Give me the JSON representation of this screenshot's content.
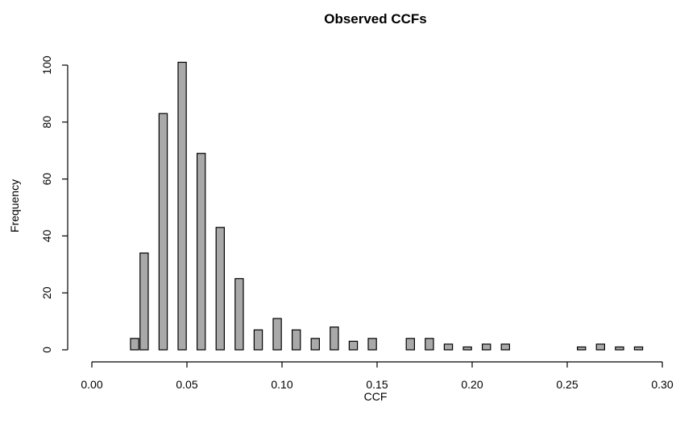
{
  "chart_data": {
    "type": "bar",
    "title": "Observed CCFs",
    "xlabel": "CCF",
    "ylabel": "Frequency",
    "xlim": [
      0.0,
      0.3
    ],
    "ylim": [
      0,
      100
    ],
    "x_ticks": [
      "0.00",
      "0.05",
      "0.10",
      "0.15",
      "0.20",
      "0.25",
      "0.30"
    ],
    "y_ticks": [
      "0",
      "20",
      "40",
      "60",
      "80",
      "100"
    ],
    "bar_color": "#a9a9a9",
    "bars": [
      {
        "x": 0.0225,
        "value": 4
      },
      {
        "x": 0.0275,
        "value": 34
      },
      {
        "x": 0.0375,
        "value": 83
      },
      {
        "x": 0.0475,
        "value": 101
      },
      {
        "x": 0.0575,
        "value": 69
      },
      {
        "x": 0.0675,
        "value": 43
      },
      {
        "x": 0.0775,
        "value": 25
      },
      {
        "x": 0.0875,
        "value": 7
      },
      {
        "x": 0.0975,
        "value": 11
      },
      {
        "x": 0.1075,
        "value": 7
      },
      {
        "x": 0.1175,
        "value": 4
      },
      {
        "x": 0.1275,
        "value": 8
      },
      {
        "x": 0.1375,
        "value": 3
      },
      {
        "x": 0.1475,
        "value": 4
      },
      {
        "x": 0.1675,
        "value": 4
      },
      {
        "x": 0.1775,
        "value": 4
      },
      {
        "x": 0.1875,
        "value": 2
      },
      {
        "x": 0.1975,
        "value": 1
      },
      {
        "x": 0.2075,
        "value": 2
      },
      {
        "x": 0.2175,
        "value": 2
      },
      {
        "x": 0.2575,
        "value": 1
      },
      {
        "x": 0.2675,
        "value": 2
      },
      {
        "x": 0.2775,
        "value": 1
      },
      {
        "x": 0.2875,
        "value": 1
      }
    ]
  }
}
